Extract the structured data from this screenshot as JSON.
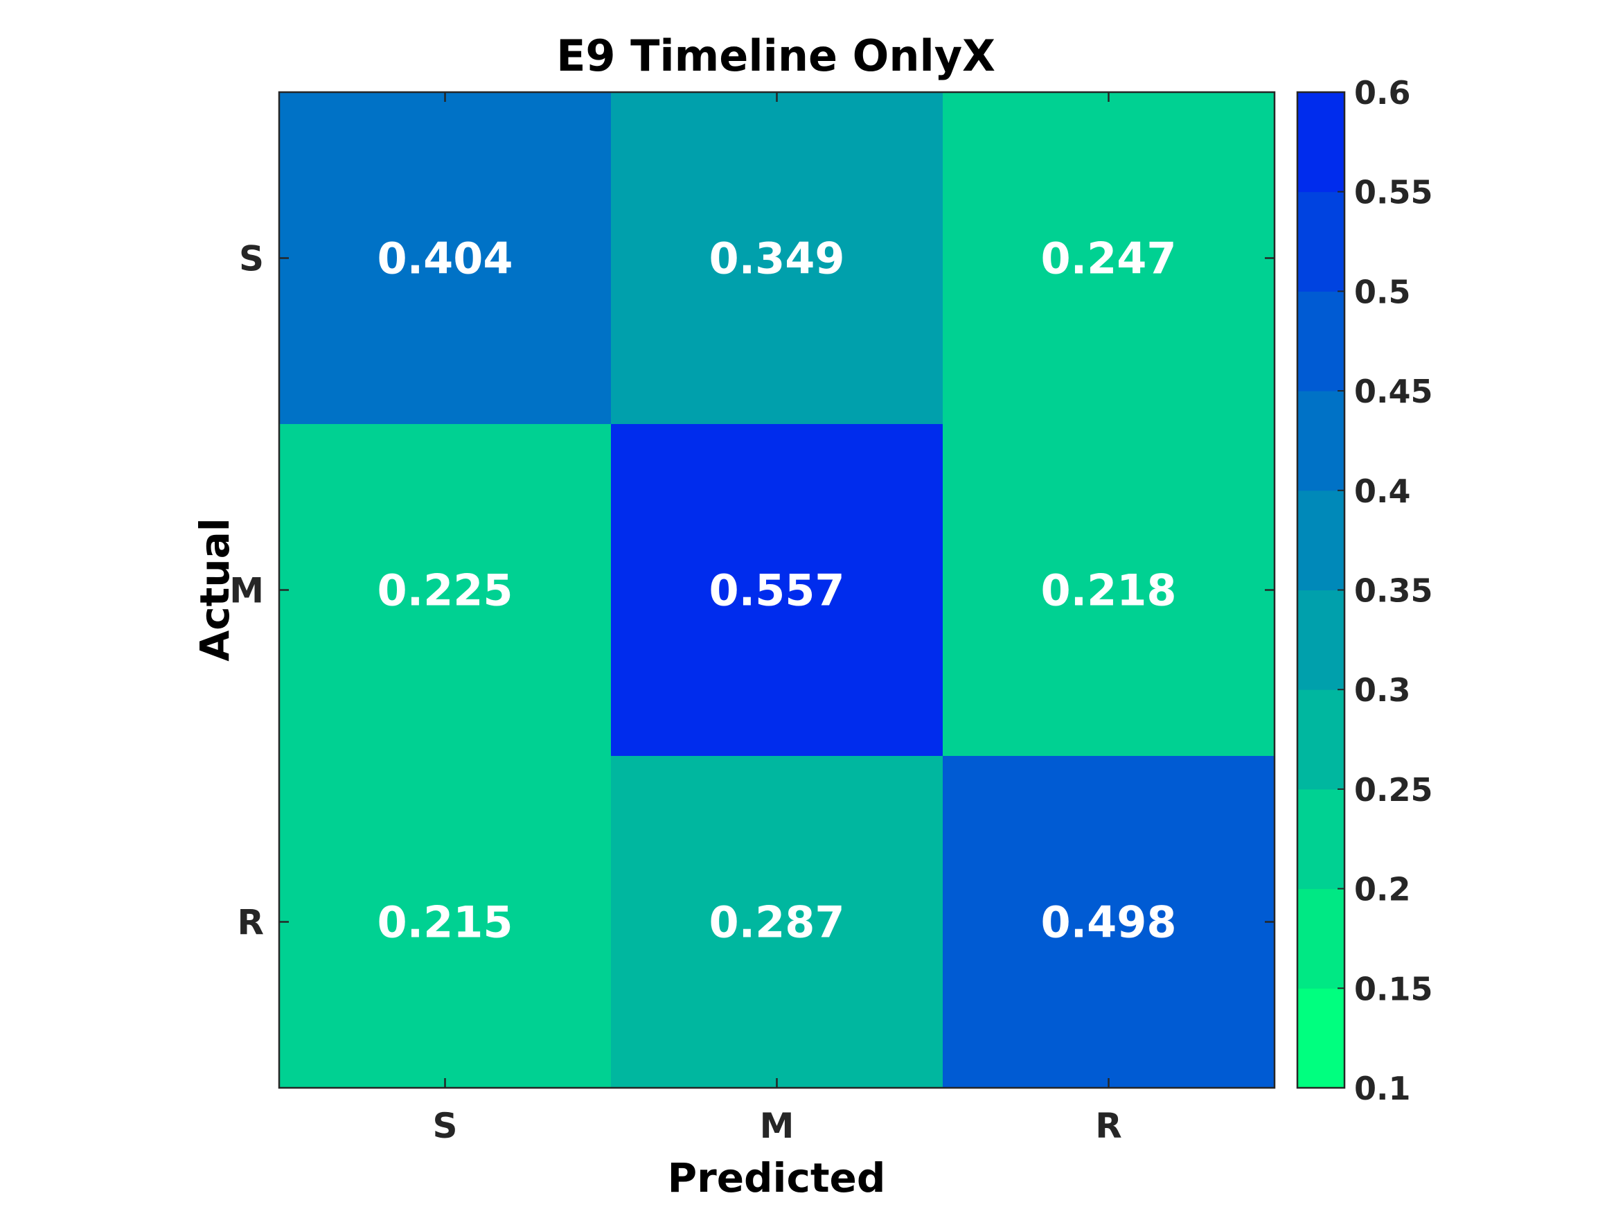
{
  "chart_data": {
    "type": "heatmap",
    "title": "E9 Timeline OnlyX",
    "xlabel": "Predicted",
    "ylabel": "Actual",
    "x_categories": [
      "S",
      "M",
      "R"
    ],
    "y_categories": [
      "S",
      "M",
      "R"
    ],
    "values": [
      [
        0.404,
        0.349,
        0.247
      ],
      [
        0.225,
        0.557,
        0.218
      ],
      [
        0.215,
        0.287,
        0.498
      ]
    ],
    "value_labels": [
      [
        "0.404",
        "0.349",
        "0.247"
      ],
      [
        "0.225",
        "0.557",
        "0.218"
      ],
      [
        "0.215",
        "0.287",
        "0.498"
      ]
    ],
    "colorbar": {
      "range": [
        0.1,
        0.6
      ],
      "ticks": [
        0.1,
        0.15,
        0.2,
        0.25,
        0.3,
        0.35,
        0.4,
        0.45,
        0.5,
        0.55,
        0.6
      ],
      "tick_labels": [
        "0.1",
        "0.15",
        "0.2",
        "0.25",
        "0.3",
        "0.35",
        "0.4",
        "0.45",
        "0.5",
        "0.55",
        "0.6"
      ],
      "levels": 10,
      "colors": [
        "#00ff7f",
        "#00e884",
        "#00d192",
        "#00b79f",
        "#00a0ac",
        "#0089b9",
        "#0072c6",
        "#005bd3",
        "#0043e0",
        "#002ced"
      ]
    },
    "grid": false,
    "cell_text_color": "#ffffff"
  }
}
